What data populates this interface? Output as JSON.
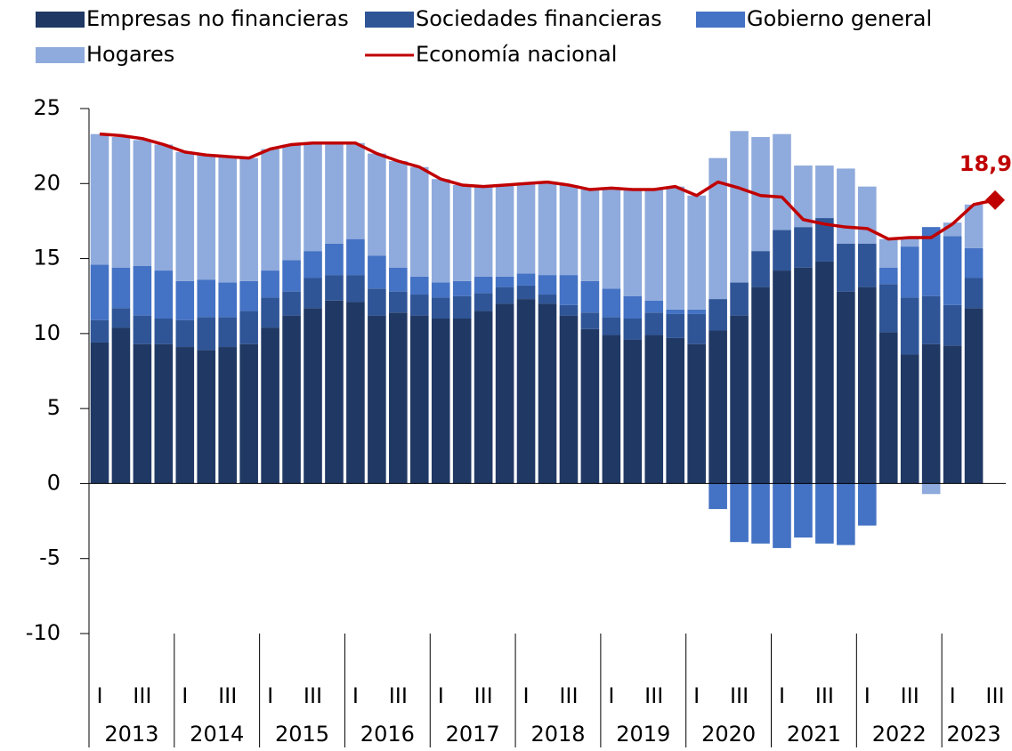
{
  "chart_data": {
    "type": "bar",
    "stacked": true,
    "categories": [
      "I",
      null,
      "III",
      null,
      "I",
      null,
      "III",
      null,
      "I",
      null,
      "III",
      null,
      "I",
      null,
      "III",
      null,
      "I",
      null,
      "III",
      null,
      "I",
      null,
      "III",
      null,
      "I",
      null,
      "III",
      null,
      "I",
      null,
      "III",
      null,
      "I",
      null,
      "III",
      null,
      "I",
      null,
      "III",
      null,
      "I",
      null,
      "III"
    ],
    "years": [
      "2013",
      "2014",
      "2015",
      "2016",
      "2017",
      "2018",
      "2019",
      "2020",
      "2021",
      "2022",
      "2023"
    ],
    "series": [
      {
        "name": "Empresas no financieras",
        "color": "#203864",
        "values": [
          9.4,
          10.4,
          9.3,
          9.3,
          9.1,
          8.9,
          9.1,
          9.3,
          10.4,
          11.2,
          11.7,
          12.2,
          12.1,
          11.2,
          11.4,
          11.2,
          11.0,
          11.0,
          11.5,
          12.0,
          12.3,
          12.0,
          11.2,
          10.3,
          9.9,
          9.6,
          9.9,
          9.7,
          9.3,
          10.2,
          11.2,
          13.1,
          14.2,
          14.4,
          14.8,
          12.8,
          13.1,
          10.1,
          8.6,
          9.3,
          9.2,
          11.7,
          null
        ]
      },
      {
        "name": "Sociedades financieras",
        "color": "#2f5597",
        "values": [
          1.5,
          1.3,
          1.9,
          1.7,
          1.8,
          2.2,
          2.0,
          2.2,
          2.0,
          1.6,
          2.0,
          1.7,
          1.8,
          1.8,
          1.4,
          1.4,
          1.4,
          1.5,
          1.2,
          1.1,
          0.9,
          0.6,
          0.7,
          1.1,
          1.2,
          1.4,
          1.5,
          1.6,
          2.0,
          2.1,
          2.2,
          2.4,
          2.7,
          2.7,
          2.9,
          3.2,
          2.9,
          3.2,
          3.8,
          3.2,
          2.7,
          2.0,
          null
        ]
      },
      {
        "name": "Gobierno general",
        "color": "#4472c4",
        "values": [
          3.7,
          2.7,
          3.3,
          3.2,
          2.6,
          2.5,
          2.3,
          2.0,
          1.8,
          2.1,
          1.8,
          2.1,
          2.4,
          2.2,
          1.6,
          1.2,
          1.0,
          1.0,
          1.1,
          0.7,
          0.8,
          1.3,
          2.0,
          2.1,
          1.9,
          1.5,
          0.8,
          0.3,
          0.3,
          -1.7,
          -3.9,
          -4.0,
          -4.3,
          -3.6,
          -4.0,
          -4.1,
          -2.8,
          1.1,
          3.4,
          4.6,
          4.6,
          2.0,
          null
        ]
      },
      {
        "name": "Hogares",
        "color": "#8faadc",
        "values": [
          8.7,
          8.7,
          8.4,
          8.4,
          8.6,
          8.3,
          8.4,
          8.2,
          8.1,
          7.7,
          7.2,
          6.7,
          6.4,
          6.8,
          7.1,
          7.3,
          6.9,
          6.4,
          6.0,
          6.1,
          6.0,
          6.2,
          6.0,
          6.1,
          6.7,
          7.1,
          7.4,
          8.2,
          7.6,
          9.4,
          10.1,
          7.6,
          6.4,
          4.1,
          3.5,
          5.0,
          3.8,
          1.9,
          0.6,
          -0.7,
          0.9,
          2.9,
          null
        ]
      },
      {
        "name": "Economía nacional",
        "color": "#c00000",
        "type": "line",
        "values": [
          23.3,
          23.2,
          23.0,
          22.6,
          22.1,
          21.9,
          21.8,
          21.7,
          22.3,
          22.6,
          22.7,
          22.7,
          22.7,
          22.0,
          21.5,
          21.1,
          20.3,
          19.9,
          19.8,
          19.9,
          20.0,
          20.1,
          19.9,
          19.6,
          19.7,
          19.6,
          19.6,
          19.8,
          19.2,
          20.1,
          19.7,
          19.2,
          19.1,
          17.6,
          17.3,
          17.1,
          17.0,
          16.3,
          16.4,
          16.4,
          17.3,
          18.6,
          18.9
        ],
        "value_labels": {
          "42": "18,9"
        }
      }
    ],
    "ylim": [
      -10,
      25
    ],
    "yticks": [
      -10,
      -5,
      0,
      5,
      10,
      15,
      20,
      25
    ]
  }
}
